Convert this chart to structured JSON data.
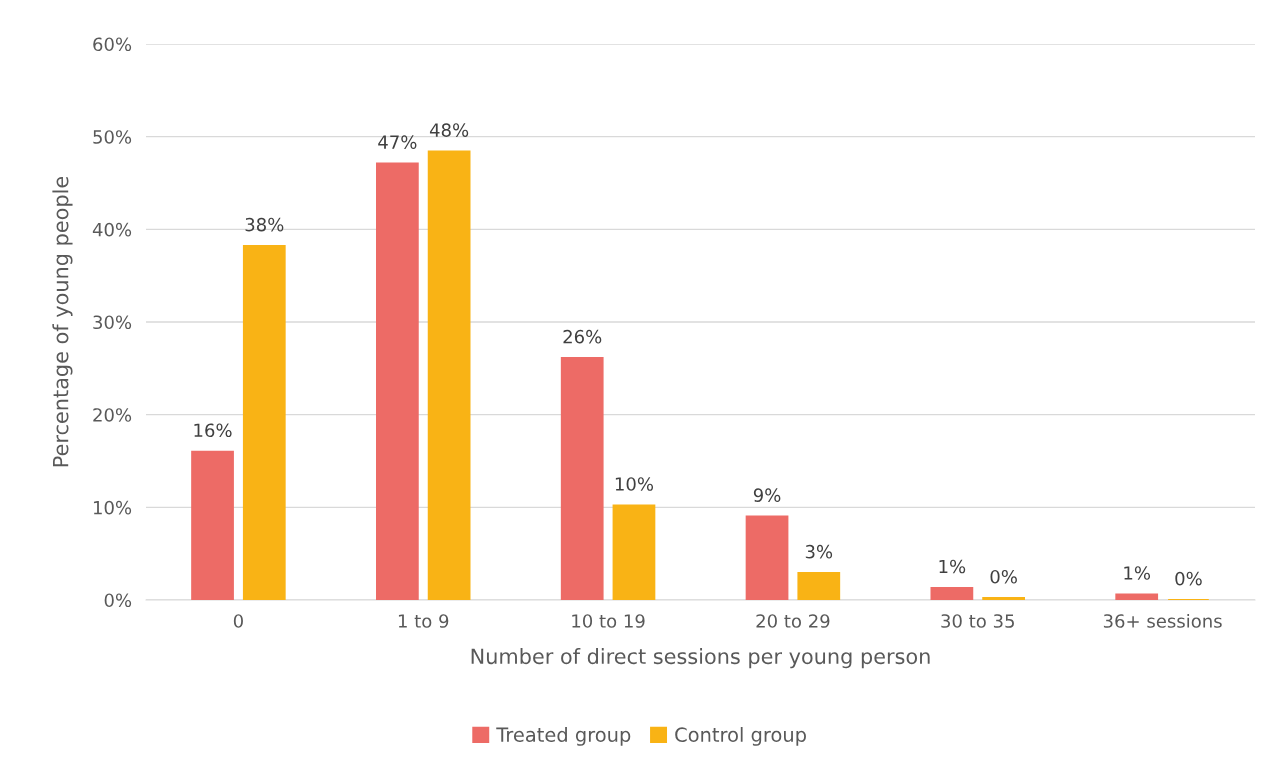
{
  "chart_data": {
    "type": "bar",
    "xlabel": "Number of direct sessions per young person",
    "ylabel": "Percentage of young people",
    "categories": [
      "0",
      "1 to 9",
      "10 to 19",
      "20 to 29",
      "30 to 35",
      "36+ sessions"
    ],
    "series": [
      {
        "name": "Treated group",
        "color": "#ed6b66",
        "values": [
          16.0,
          47.1,
          26.1,
          9.0,
          1.3,
          0.6
        ],
        "value_labels": [
          "16%",
          "47%",
          "26%",
          "9%",
          "1%",
          "1%"
        ]
      },
      {
        "name": "Control group",
        "color": "#f9b315",
        "values": [
          38.2,
          48.4,
          10.2,
          2.9,
          0.2,
          0.0
        ],
        "value_labels": [
          "38%",
          "48%",
          "10%",
          "3%",
          "0%",
          "0%"
        ]
      }
    ],
    "ylim": [
      0,
      60
    ],
    "yticks": [
      {
        "value": 0,
        "label": "0%"
      },
      {
        "value": 10,
        "label": "10%"
      },
      {
        "value": 20,
        "label": "20%"
      },
      {
        "value": 30,
        "label": "30%"
      },
      {
        "value": 40,
        "label": "40%"
      },
      {
        "value": 50,
        "label": "50%"
      },
      {
        "value": 60,
        "label": "60%"
      }
    ],
    "grid": "y",
    "legend": "bottom"
  }
}
